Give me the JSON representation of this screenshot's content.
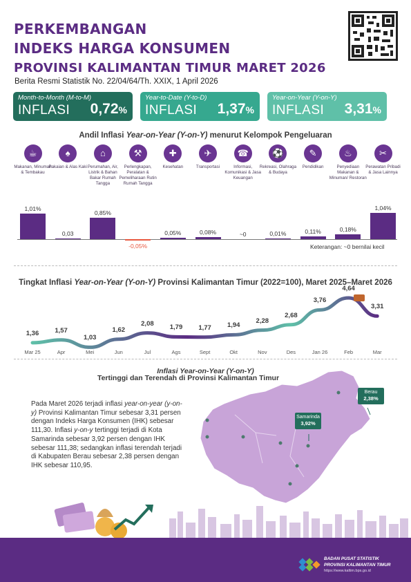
{
  "header": {
    "title_line1": "PERKEMBANGAN",
    "title_line2": "INDEKS HARGA KONSUMEN",
    "title_line3": "PROVINSI KALIMANTAN TIMUR MARET 2026",
    "subtitle": "Berita Resmi Statistik No. 22/04/64/Th. XXIX, 1 April 2026"
  },
  "cards": [
    {
      "label": "Month-to-Month (M-to-M)",
      "word": "INFLASI",
      "value": "0,72",
      "unit": "%"
    },
    {
      "label": "Year-to-Date (Y-to-D)",
      "word": "INFLASI",
      "value": "1,37",
      "unit": "%"
    },
    {
      "label": "Year-on-Year (Y-on-Y)",
      "word": "INFLASI",
      "value": "3,31",
      "unit": "%"
    }
  ],
  "andil": {
    "title_pre": "Andil Inflasi ",
    "title_italic": "Year-on-Year (Y-on-Y)",
    "title_post": " menurut Kelompok Pengeluaran",
    "note": "Keterangan: ~0 bernilai kecil"
  },
  "trend": {
    "title_pre": "Tingkat Inflasi ",
    "title_italic": "Year-on-Year (Y-on-Y)",
    "title_post": " Provinsi Kalimantan Timur (2022=100), Maret 2025–Maret 2026"
  },
  "chart_data": [
    {
      "type": "bar",
      "categories": [
        "Makanan, Minuman & Tembakau",
        "Pakaian & Alas Kaki",
        "Perumahan, Air, Listrik & Bahan Bakar Rumah Tangga",
        "Perlengkapan, Peralatan & Pemeliharaan Rutin Rumah Tangga",
        "Kesehatan",
        "Transportasi",
        "Informasi, Komunikasi & Jasa Keuangan",
        "Rekreasi, Olahraga & Budaya",
        "Pendidikan",
        "Penyediaan Makanan & Minuman/ Restoran",
        "Perawatan Pribadi & Jasa Lainnya"
      ],
      "values": [
        1.01,
        0.03,
        0.85,
        -0.05,
        0.05,
        0.08,
        0,
        0.01,
        0.11,
        0.18,
        1.04
      ],
      "labels": [
        "1,01%",
        "0,03",
        "0,85%",
        "-0,05%",
        "0,05%",
        "0,08%",
        "~0",
        "0,01%",
        "0,11%",
        "0,18%",
        "1,04%"
      ],
      "colors": {
        "positive": "#5b2c83",
        "negative": "#e8573f"
      }
    },
    {
      "type": "line",
      "categories": [
        "Mar 25",
        "Apr",
        "Mei",
        "Jun",
        "Jul",
        "Ags",
        "Sept",
        "Okt",
        "Nov",
        "Des",
        "Jan 26",
        "Feb",
        "Mar"
      ],
      "values": [
        1.36,
        1.57,
        1.03,
        1.62,
        2.08,
        1.79,
        1.77,
        1.94,
        2.28,
        2.68,
        3.76,
        4.64,
        3.31
      ],
      "labels": [
        "1,36",
        "1,57",
        "1,03",
        "1,62",
        "2,08",
        "1,79",
        "1,77",
        "1,94",
        "2,28",
        "2,68",
        "3,76",
        "4,64",
        "3,31"
      ],
      "colors": {
        "line_start": "#5fc0a8",
        "line_end": "#5b2c83"
      }
    }
  ],
  "icons": [
    "food-icon",
    "clothing-icon",
    "house-icon",
    "sofa-icon",
    "health-icon",
    "plane-icon",
    "phone-icon",
    "sport-icon",
    "education-icon",
    "restaurant-icon",
    "personal-care-icon"
  ],
  "map": {
    "title_line1": "Inflasi Year-on-Year (Y-on-Y)",
    "title_line2": "Tertinggi dan Terendah di Provinsi Kalimantan Timur",
    "paragraph_1": "Pada Maret 2026 terjadi inflasi",
    "paragraph_italic_1": "year-on-year (y-on-y)",
    "paragraph_2": " Provinsi Kalimantan Timur sebesar 3,31 persen dengan Indeks Harga Konsumen (IHK) sebesar 111,30. Inflasi ",
    "paragraph_italic_2": "y-on-y",
    "paragraph_3": " tertinggi terjadi di Kota Samarinda sebesar 3,92 persen dengan IHK sebesar 111,38; sedangkan inflasi terendah terjadi di Kabupaten Berau sebesar 2,38 persen dengan IHK sebesar 110,95.",
    "highest": {
      "name": "Samarinda",
      "value": "3,92%"
    },
    "lowest": {
      "name": "Berau",
      "value": "2,38%"
    },
    "region_color": "#c8a4d8"
  },
  "footer": {
    "org_line1": "BADAN PUSAT STATISTIK",
    "org_line2": "PROVINSI KALIMANTAN TIMUR",
    "url": "https://www.kaltim.bps.go.id",
    "color": "#5b2c83"
  }
}
